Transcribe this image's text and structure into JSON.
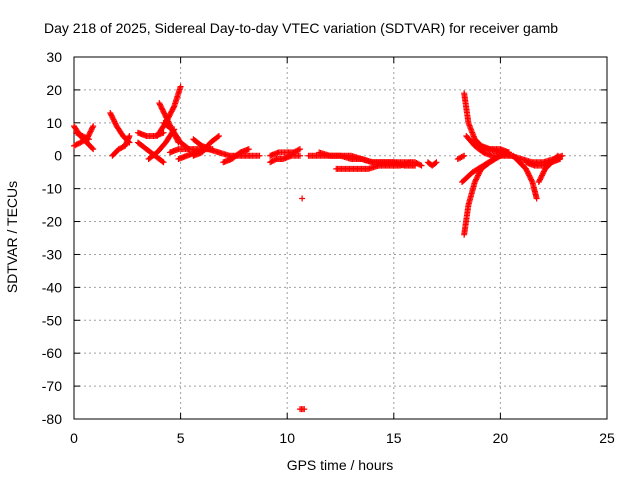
{
  "chart_data": {
    "type": "scatter",
    "title": "Day 218 of 2025, Sidereal Day-to-day VTEC variation (SDTVAR) for receiver gamb",
    "xlabel": "GPS time / hours",
    "ylabel": "SDTVAR / TECUs",
    "xlim": [
      0,
      25
    ],
    "ylim": [
      -80,
      30
    ],
    "xticks": [
      "0",
      "5",
      "10",
      "15",
      "20",
      "25"
    ],
    "yticks": [
      "30",
      "20",
      "10",
      "0",
      "-10",
      "-20",
      "-30",
      "-40",
      "-50",
      "-60",
      "-70",
      "-80"
    ],
    "grid": true,
    "marker": "+",
    "color": "#ff0000",
    "segments": [
      {
        "x": [
          0.0,
          0.3,
          0.6,
          0.9
        ],
        "y": [
          9,
          6,
          4,
          2
        ]
      },
      {
        "x": [
          0.0,
          0.3,
          0.6,
          0.9
        ],
        "y": [
          3,
          4,
          5,
          9
        ]
      },
      {
        "x": [
          0.1,
          0.4,
          0.7
        ],
        "y": [
          7,
          6,
          5
        ]
      },
      {
        "x": [
          1.7,
          2.0,
          2.3,
          2.6
        ],
        "y": [
          13,
          9,
          6,
          4
        ]
      },
      {
        "x": [
          1.8,
          2.1,
          2.4,
          2.6
        ],
        "y": [
          0,
          2,
          3,
          6
        ]
      },
      {
        "x": [
          3.0,
          3.4,
          3.8,
          4.2
        ],
        "y": [
          7,
          6,
          6,
          7
        ]
      },
      {
        "x": [
          3.0,
          3.4,
          3.8,
          4.2
        ],
        "y": [
          4,
          2,
          0,
          -2
        ]
      },
      {
        "x": [
          3.5,
          3.9,
          4.3,
          4.7
        ],
        "y": [
          -1,
          1,
          4,
          8
        ]
      },
      {
        "x": [
          3.9,
          4.3,
          4.7,
          5.0
        ],
        "y": [
          6,
          10,
          15,
          21
        ]
      },
      {
        "x": [
          4.0,
          4.3,
          4.6,
          4.9
        ],
        "y": [
          16,
          12,
          8,
          4
        ]
      },
      {
        "x": [
          4.2,
          4.6,
          5.0,
          5.4
        ],
        "y": [
          10,
          8,
          4,
          2
        ]
      },
      {
        "x": [
          4.5,
          4.9,
          5.3,
          5.8,
          6.3,
          6.8
        ],
        "y": [
          1,
          2,
          2,
          2,
          2,
          1
        ]
      },
      {
        "x": [
          4.9,
          5.3,
          5.7,
          6.1,
          6.5
        ],
        "y": [
          -1,
          0,
          1,
          2,
          2
        ]
      },
      {
        "x": [
          5.6,
          6.0,
          6.4
        ],
        "y": [
          5,
          3,
          2
        ]
      },
      {
        "x": [
          5.6,
          6.0,
          6.4,
          6.8
        ],
        "y": [
          0,
          1,
          4,
          6
        ]
      },
      {
        "x": [
          6.8,
          7.3,
          7.8,
          8.3,
          8.7
        ],
        "y": [
          1,
          0,
          0,
          0,
          0
        ]
      },
      {
        "x": [
          7.0,
          7.4,
          7.8,
          8.2
        ],
        "y": [
          -2,
          -1,
          1,
          2
        ]
      },
      {
        "x": [
          9.2,
          9.6,
          10.0,
          10.3,
          10.6
        ],
        "y": [
          0,
          1,
          1,
          1,
          2
        ]
      },
      {
        "x": [
          9.2,
          9.5,
          9.8,
          10.2,
          10.6
        ],
        "y": [
          -2,
          -1,
          -1,
          0,
          0
        ]
      },
      {
        "x": [
          10.7
        ],
        "y": [
          -13
        ]
      },
      {
        "x": [
          10.6,
          10.8
        ],
        "y": [
          -77,
          -77
        ]
      },
      {
        "x": [
          11.0,
          11.5,
          12.0,
          12.5,
          13.0,
          13.5,
          14.0,
          14.5,
          15.0,
          15.5,
          16.0,
          16.3
        ],
        "y": [
          0,
          0,
          0,
          0,
          -1,
          -1,
          -2,
          -2,
          -2,
          -2,
          -2,
          -3
        ]
      },
      {
        "x": [
          11.5,
          12.0,
          12.5,
          13.0,
          13.5,
          14.0,
          14.5,
          15.0,
          15.5,
          16.0
        ],
        "y": [
          1,
          0,
          0,
          0,
          -1,
          -2,
          -2,
          -2,
          -3,
          -3
        ]
      },
      {
        "x": [
          12.3,
          12.8,
          13.3,
          13.8,
          14.3,
          14.8,
          15.3,
          15.8
        ],
        "y": [
          -4,
          -4,
          -4,
          -4,
          -3,
          -3,
          -3,
          -2
        ]
      },
      {
        "x": [
          16.6,
          16.8,
          17.0
        ],
        "y": [
          -2,
          -3,
          -2
        ]
      },
      {
        "x": [
          18.0,
          18.3
        ],
        "y": [
          -1,
          0
        ]
      },
      {
        "x": [
          18.2,
          18.7,
          19.2,
          19.7,
          20.0
        ],
        "y": [
          -8,
          -5,
          -3,
          -1,
          0
        ]
      },
      {
        "x": [
          18.3,
          18.5,
          18.8,
          19.1,
          19.5,
          20.0,
          20.4
        ],
        "y": [
          19,
          10,
          5,
          3,
          2,
          2,
          1
        ]
      },
      {
        "x": [
          18.3,
          18.5,
          18.8,
          19.1,
          19.5,
          20.0,
          20.4
        ],
        "y": [
          -24,
          -15,
          -8,
          -4,
          -2,
          0,
          1
        ]
      },
      {
        "x": [
          18.4,
          18.8,
          19.2,
          19.6,
          20.0,
          20.5
        ],
        "y": [
          6,
          3,
          1,
          0,
          0,
          0
        ]
      },
      {
        "x": [
          19.0,
          19.5,
          20.0,
          20.5,
          21.0,
          21.5,
          22.0,
          22.5,
          22.9
        ],
        "y": [
          3,
          2,
          1,
          0,
          -1,
          -2,
          -2,
          -1,
          0
        ]
      },
      {
        "x": [
          20.6,
          20.9,
          21.2,
          21.5,
          21.7
        ],
        "y": [
          0,
          -2,
          -4,
          -8,
          -13
        ]
      },
      {
        "x": [
          21.2,
          21.6,
          22.0,
          22.4,
          22.8
        ],
        "y": [
          -2,
          -3,
          -3,
          -2,
          -1
        ]
      },
      {
        "x": [
          21.8,
          22.1,
          22.4,
          22.7
        ],
        "y": [
          -8,
          -4,
          -2,
          0
        ]
      }
    ]
  }
}
